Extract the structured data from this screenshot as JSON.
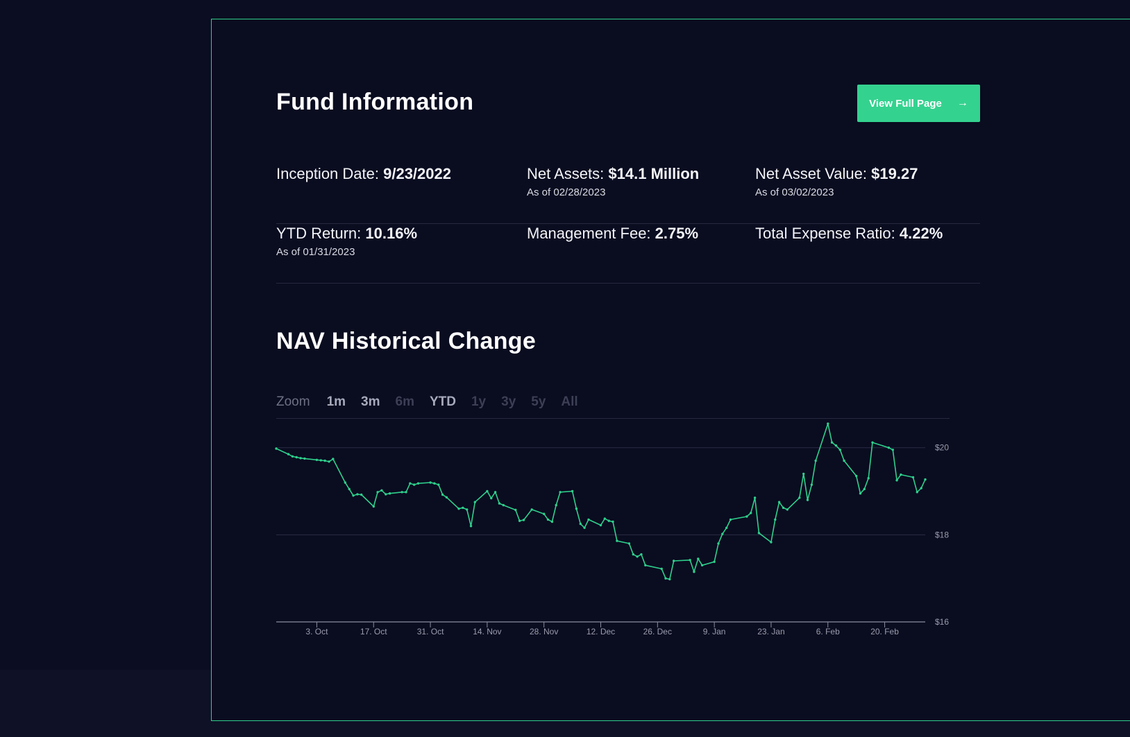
{
  "header": {
    "title": "Fund Information",
    "view_full_page": "View Full Page"
  },
  "info": {
    "inception_date": {
      "label": "Inception Date:",
      "value": "9/23/2022"
    },
    "net_assets": {
      "label": "Net Assets:",
      "value": "$14.1 Million",
      "as_of": "As of 02/28/2023"
    },
    "nav": {
      "label": "Net Asset Value:",
      "value": "$19.27",
      "as_of": "As of 03/02/2023"
    },
    "ytd_return": {
      "label": "YTD Return:",
      "value": "10.16%",
      "as_of": "As of 01/31/2023"
    },
    "management_fee": {
      "label": "Management Fee:",
      "value": "2.75%"
    },
    "total_expense_ratio": {
      "label": "Total Expense Ratio:",
      "value": "4.22%"
    }
  },
  "nav_section": {
    "title": "NAV Historical Change"
  },
  "zoom": {
    "label": "Zoom",
    "options": [
      {
        "label": "1m",
        "enabled": true
      },
      {
        "label": "3m",
        "enabled": true
      },
      {
        "label": "6m",
        "enabled": false
      },
      {
        "label": "YTD",
        "enabled": true
      },
      {
        "label": "1y",
        "enabled": false
      },
      {
        "label": "3y",
        "enabled": false
      },
      {
        "label": "5y",
        "enabled": false
      },
      {
        "label": "All",
        "enabled": false
      }
    ]
  },
  "colors": {
    "accent": "#34d28f",
    "panel_border": "#2fd08c",
    "background": "#0b0d22",
    "line": "#2fd08c",
    "grid": "#2a2d44"
  },
  "chart_data": {
    "type": "line",
    "title": "",
    "xlabel": "",
    "ylabel": "",
    "ylim": [
      16,
      20.6
    ],
    "xlim": [
      "2022-09-23",
      "2023-03-02"
    ],
    "y_ticks": [
      16,
      18,
      20
    ],
    "y_tick_labels": [
      "$16",
      "$18",
      "$20"
    ],
    "x_ticks": [
      "2022-10-03",
      "2022-10-17",
      "2022-10-31",
      "2022-11-14",
      "2022-11-28",
      "2022-12-12",
      "2022-12-26",
      "2023-01-09",
      "2023-01-23",
      "2023-02-06",
      "2023-02-20"
    ],
    "x_tick_labels": [
      "3. Oct",
      "17. Oct",
      "31. Oct",
      "14. Nov",
      "28. Nov",
      "12. Dec",
      "26. Dec",
      "9. Jan",
      "23. Jan",
      "6. Feb",
      "20. Feb"
    ],
    "grid": true,
    "series": [
      {
        "x": [
          "2022-09-23",
          "2022-09-26",
          "2022-09-27",
          "2022-09-28",
          "2022-09-29",
          "2022-09-30",
          "2022-10-03",
          "2022-10-04",
          "2022-10-05",
          "2022-10-06",
          "2022-10-07",
          "2022-10-10",
          "2022-10-11",
          "2022-10-12",
          "2022-10-13",
          "2022-10-14",
          "2022-10-17",
          "2022-10-18",
          "2022-10-19",
          "2022-10-20",
          "2022-10-21",
          "2022-10-24",
          "2022-10-25",
          "2022-10-26",
          "2022-10-27",
          "2022-10-28",
          "2022-10-31",
          "2022-11-01",
          "2022-11-02",
          "2022-11-03",
          "2022-11-04",
          "2022-11-07",
          "2022-11-08",
          "2022-11-09",
          "2022-11-10",
          "2022-11-11",
          "2022-11-14",
          "2022-11-15",
          "2022-11-16",
          "2022-11-17",
          "2022-11-18",
          "2022-11-21",
          "2022-11-22",
          "2022-11-23",
          "2022-11-25",
          "2022-11-28",
          "2022-11-29",
          "2022-11-30",
          "2022-12-01",
          "2022-12-02",
          "2022-12-05",
          "2022-12-06",
          "2022-12-07",
          "2022-12-08",
          "2022-12-09",
          "2022-12-12",
          "2022-12-13",
          "2022-12-14",
          "2022-12-15",
          "2022-12-16",
          "2022-12-19",
          "2022-12-20",
          "2022-12-21",
          "2022-12-22",
          "2022-12-23",
          "2022-12-27",
          "2022-12-28",
          "2022-12-29",
          "2022-12-30",
          "2023-01-03",
          "2023-01-04",
          "2023-01-05",
          "2023-01-06",
          "2023-01-09",
          "2023-01-10",
          "2023-01-11",
          "2023-01-12",
          "2023-01-13",
          "2023-01-17",
          "2023-01-18",
          "2023-01-19",
          "2023-01-20",
          "2023-01-23",
          "2023-01-24",
          "2023-01-25",
          "2023-01-26",
          "2023-01-27",
          "2023-01-30",
          "2023-01-31",
          "2023-02-01",
          "2023-02-02",
          "2023-02-03",
          "2023-02-06",
          "2023-02-07",
          "2023-02-08",
          "2023-02-09",
          "2023-02-10",
          "2023-02-13",
          "2023-02-14",
          "2023-02-15",
          "2023-02-16",
          "2023-02-17",
          "2023-02-21",
          "2023-02-22",
          "2023-02-23",
          "2023-02-24",
          "2023-02-27",
          "2023-02-28",
          "2023-03-01",
          "2023-03-02"
        ],
        "y": [
          19.98,
          19.85,
          19.8,
          19.78,
          19.76,
          19.75,
          19.72,
          19.71,
          19.7,
          19.68,
          19.74,
          19.2,
          19.05,
          18.9,
          18.93,
          18.92,
          18.65,
          18.98,
          19.02,
          18.93,
          18.95,
          18.98,
          18.98,
          19.18,
          19.15,
          19.18,
          19.2,
          19.18,
          19.15,
          18.92,
          18.86,
          18.6,
          18.62,
          18.58,
          18.2,
          18.75,
          19.0,
          18.84,
          18.98,
          18.72,
          18.68,
          18.57,
          18.32,
          18.34,
          18.58,
          18.48,
          18.35,
          18.3,
          18.68,
          18.98,
          19.0,
          18.6,
          18.25,
          18.16,
          18.35,
          18.22,
          18.37,
          18.32,
          18.3,
          17.86,
          17.8,
          17.55,
          17.5,
          17.55,
          17.3,
          17.22,
          17.0,
          16.98,
          17.4,
          17.42,
          17.15,
          17.45,
          17.3,
          17.38,
          17.8,
          18.02,
          18.16,
          18.35,
          18.42,
          18.5,
          18.85,
          18.04,
          17.83,
          18.35,
          18.75,
          18.62,
          18.58,
          18.85,
          19.4,
          18.8,
          19.15,
          19.7,
          20.55,
          20.12,
          20.05,
          19.95,
          19.7,
          19.35,
          18.95,
          19.05,
          19.3,
          20.12,
          20.0,
          19.95,
          19.25,
          19.38,
          19.32,
          18.98,
          19.07,
          19.27
        ]
      }
    ]
  }
}
